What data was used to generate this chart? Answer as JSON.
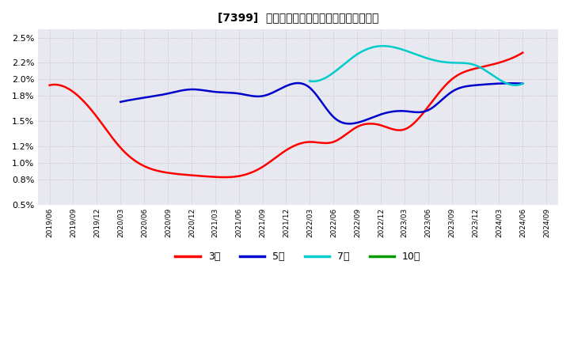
{
  "title": "[7399]  当期純利益マージンの標準偏差の推移",
  "background_color": "#ffffff",
  "plot_background_color": "#e8e8f0",
  "grid_color": "#bbbbbb",
  "ylim": [
    0.005,
    0.026
  ],
  "yticks": [
    0.005,
    0.008,
    0.01,
    0.012,
    0.015,
    0.018,
    0.02,
    0.022,
    0.025
  ],
  "ytick_labels": [
    "0.5%",
    "0.8%",
    "1.0%",
    "1.2%",
    "1.5%",
    "1.8%",
    "2.0%",
    "2.2%",
    "2.5%"
  ],
  "x_dates": [
    "2019/06",
    "2019/09",
    "2019/12",
    "2020/03",
    "2020/06",
    "2020/09",
    "2020/12",
    "2021/03",
    "2021/06",
    "2021/09",
    "2021/12",
    "2022/03",
    "2022/06",
    "2022/09",
    "2022/12",
    "2023/03",
    "2023/06",
    "2023/09",
    "2023/12",
    "2024/03",
    "2024/06",
    "2024/09"
  ],
  "series_3y": {
    "label": "3年",
    "color": "#ff0000",
    "values": [
      0.0193,
      0.0185,
      0.0155,
      0.0118,
      0.0096,
      0.0088,
      0.0085,
      0.0083,
      0.0084,
      0.0095,
      0.0115,
      0.0125,
      0.0125,
      0.0143,
      0.0145,
      0.014,
      0.0167,
      0.02,
      0.0213,
      0.022,
      0.0232,
      null
    ]
  },
  "series_5y": {
    "label": "5年",
    "color": "#0000cc",
    "values": [
      null,
      null,
      null,
      0.0173,
      0.0178,
      0.0183,
      0.0188,
      0.0185,
      0.0183,
      0.018,
      0.0192,
      0.019,
      0.0155,
      0.0148,
      0.0158,
      0.0162,
      0.0163,
      0.0185,
      0.0193,
      0.0195,
      0.0195,
      null
    ]
  },
  "series_7y": {
    "label": "7年",
    "color": "#00cccc",
    "values": [
      null,
      null,
      null,
      null,
      null,
      null,
      null,
      null,
      null,
      null,
      null,
      0.0198,
      0.0208,
      0.023,
      0.024,
      0.0235,
      0.0225,
      0.022,
      0.0217,
      0.02,
      0.0195,
      null
    ]
  },
  "series_10y": {
    "label": "10年",
    "color": "#009900",
    "values": [
      null,
      null,
      null,
      null,
      null,
      null,
      null,
      null,
      null,
      null,
      null,
      null,
      null,
      null,
      null,
      null,
      null,
      null,
      null,
      null,
      null,
      null
    ]
  },
  "legend_labels": [
    "3年",
    "5年",
    "7年",
    "10年"
  ],
  "legend_colors": [
    "#ff0000",
    "#0000cc",
    "#00cccc",
    "#009900"
  ]
}
